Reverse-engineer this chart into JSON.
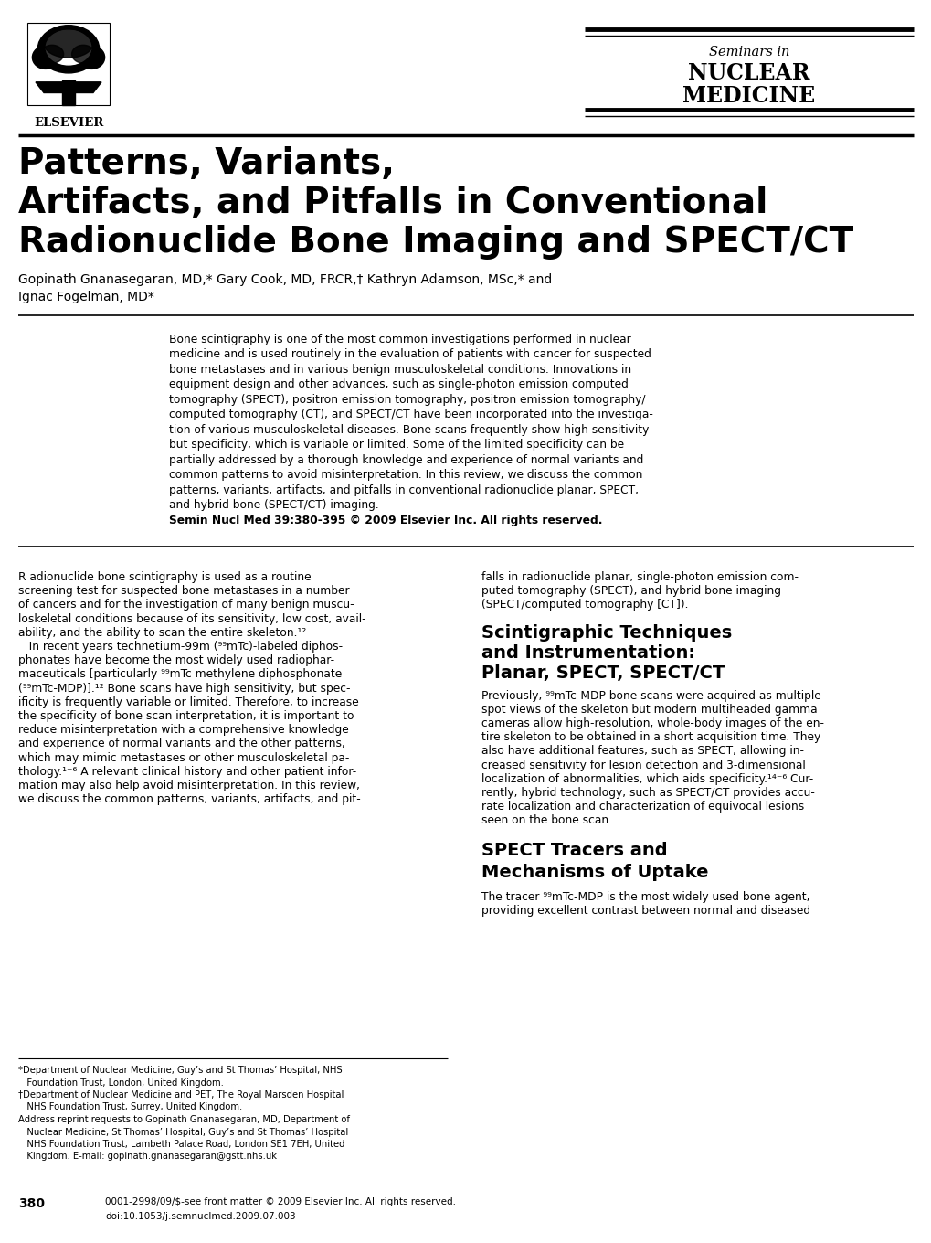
{
  "bg_color": "#ffffff",
  "header_logo_text": "ELSEVIER",
  "journal_seminars_in": "Seminars in",
  "journal_nuclear": "NUCLEAR",
  "journal_medicine": "MEDICINE",
  "title_line1": "Patterns, Variants,",
  "title_line2": "Artifacts, and Pitfalls in Conventional",
  "title_line3": "Radionuclide Bone Imaging and SPECT/CT",
  "authors": "Gopinath Gnanasegaran, MD,* Gary Cook, MD, FRCR,† Kathryn Adamson, MSc,* and",
  "authors2": "Ignac Fogelman, MD*",
  "abstract_text": [
    "Bone scintigraphy is one of the most common investigations performed in nuclear",
    "medicine and is used routinely in the evaluation of patients with cancer for suspected",
    "bone metastases and in various benign musculoskeletal conditions. Innovations in",
    "equipment design and other advances, such as single-photon emission computed",
    "tomography (SPECT), positron emission tomography, positron emission tomography/",
    "computed tomography (CT), and SPECT/CT have been incorporated into the investiga-",
    "tion of various musculoskeletal diseases. Bone scans frequently show high sensitivity",
    "but specificity, which is variable or limited. Some of the limited specificity can be",
    "partially addressed by a thorough knowledge and experience of normal variants and",
    "common patterns to avoid misinterpretation. In this review, we discuss the common",
    "patterns, variants, artifacts, and pitfalls in conventional radionuclide planar, SPECT,",
    "and hybrid bone (SPECT/CT) imaging.",
    "Semin Nucl Med 39:380-395 © 2009 Elsevier Inc. All rights reserved."
  ],
  "body_col1": [
    "R adionuclide bone scintigraphy is used as a routine",
    "screening test for suspected bone metastases in a number",
    "of cancers and for the investigation of many benign muscu-",
    "loskeletal conditions because of its sensitivity, low cost, avail-",
    "ability, and the ability to scan the entire skeleton.¹²",
    "   In recent years technetium-99m (⁹⁹mTc)-labeled diphos-",
    "phonates have become the most widely used radiophar-",
    "maceuticals [particularly ⁹⁹mTc methylene diphosphonate",
    "(⁹⁹mTc-MDP)].¹² Bone scans have high sensitivity, but spec-",
    "ificity is frequently variable or limited. Therefore, to increase",
    "the specificity of bone scan interpretation, it is important to",
    "reduce misinterpretation with a comprehensive knowledge",
    "and experience of normal variants and the other patterns,",
    "which may mimic metastases or other musculoskeletal pa-",
    "thology.¹⁻⁶ A relevant clinical history and other patient infor-",
    "mation may also help avoid misinterpretation. In this review,",
    "we discuss the common patterns, variants, artifacts, and pit-"
  ],
  "body_col2_top": [
    "falls in radionuclide planar, single-photon emission com-",
    "puted tomography (SPECT), and hybrid bone imaging",
    "(SPECT/computed tomography [CT])."
  ],
  "section_title1a": "Scintigraphic Techniques",
  "section_title1b": "and Instrumentation:",
  "section_title1c": "Planar, SPECT, SPECT/CT",
  "body_col2_mid": [
    "Previously, ⁹⁹mTc-MDP bone scans were acquired as multiple",
    "spot views of the skeleton but modern multiheaded gamma",
    "cameras allow high-resolution, whole-body images of the en-",
    "tire skeleton to be obtained in a short acquisition time. They",
    "also have additional features, such as SPECT, allowing in-",
    "creased sensitivity for lesion detection and 3-dimensional",
    "localization of abnormalities, which aids specificity.¹⁴⁻⁶ Cur-",
    "rently, hybrid technology, such as SPECT/CT provides accu-",
    "rate localization and characterization of equivocal lesions",
    "seen on the bone scan."
  ],
  "section_title2a": "SPECT Tracers and",
  "section_title2b": "Mechanisms of Uptake",
  "body_col2_bottom": [
    "The tracer ⁹⁹mTc-MDP is the most widely used bone agent,",
    "providing excellent contrast between normal and diseased"
  ],
  "footnote_lines": [
    "*Department of Nuclear Medicine, Guy’s and St Thomas’ Hospital, NHS",
    "   Foundation Trust, London, United Kingdom.",
    "†Department of Nuclear Medicine and PET, The Royal Marsden Hospital",
    "   NHS Foundation Trust, Surrey, United Kingdom.",
    "Address reprint requests to Gopinath Gnanasegaran, MD, Department of",
    "   Nuclear Medicine, St Thomas’ Hospital, Guy’s and St Thomas’ Hospital",
    "   NHS Foundation Trust, Lambeth Palace Road, London SE1 7EH, United",
    "   Kingdom. E-mail: gopinath.gnanasegaran@gstt.nhs.uk"
  ],
  "page_number": "380",
  "copyright_line": "0001-2998/09/$-see front matter © 2009 Elsevier Inc. All rights reserved.",
  "doi_line": "doi:10.1053/j.semnuclmed.2009.07.003"
}
